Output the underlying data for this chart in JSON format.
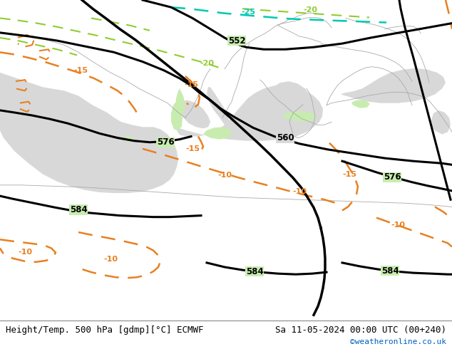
{
  "title_left": "Height/Temp. 500 hPa [gdmp][°C] ECMWF",
  "title_right": "Sa 11-05-2024 00:00 UTC (00+240)",
  "credit": "©weatheronline.co.uk",
  "bg_color": "#ffffff",
  "map_land_color": "#c8ecb0",
  "sea_color": "#d8d8d8",
  "border_color": "#aaaaaa",
  "contour_height_color": "#000000",
  "contour_temp_color": "#e88020",
  "contour_cold_color": "#00c8b0",
  "contour_green_color": "#90cc30",
  "label_color": "#000000",
  "bottom_bar_color": "#e8e8e8",
  "credit_color": "#0060c0",
  "figsize": [
    6.34,
    4.9
  ],
  "dpi": 100
}
